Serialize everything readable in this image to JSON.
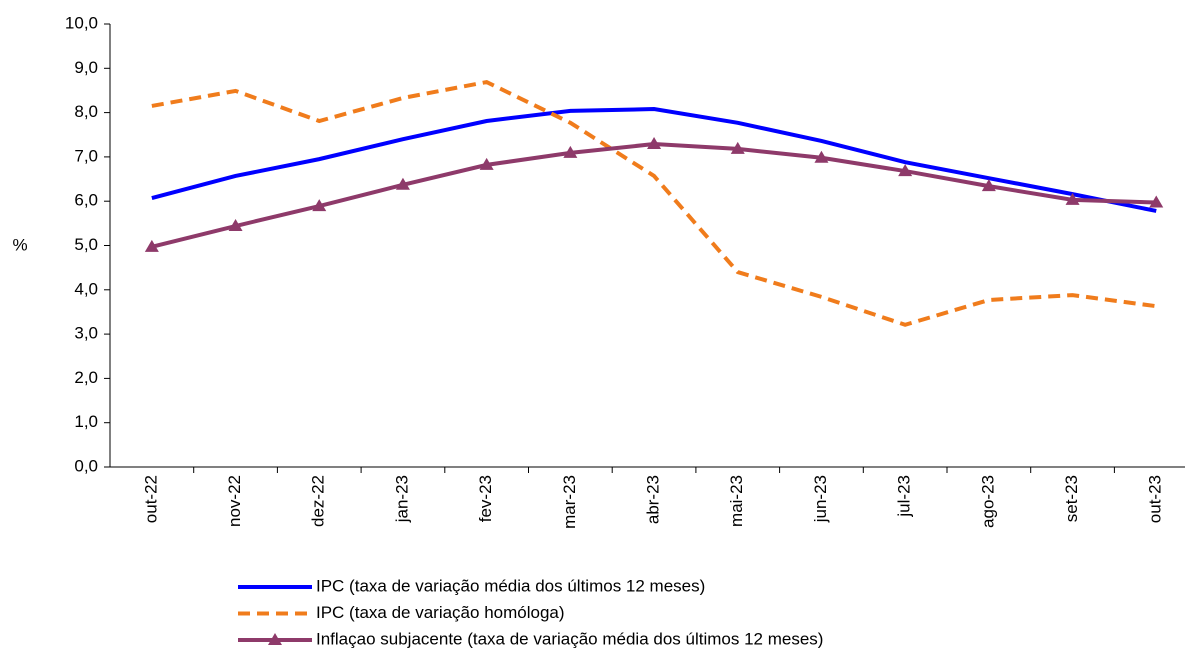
{
  "chart_data": {
    "type": "line",
    "y_label": "%",
    "categories": [
      "out-22",
      "nov-22",
      "dez-22",
      "jan-23",
      "fev-23",
      "mar-23",
      "abr-23",
      "mai-23",
      "jun-23",
      "jul-23",
      "ago-23",
      "set-23",
      "out-23"
    ],
    "series": [
      {
        "name": "IPC (taxa de variação média dos últimos 12 meses)",
        "color": "#0000ff",
        "dash": false,
        "marker": null,
        "values": [
          6.07,
          6.57,
          6.95,
          7.4,
          7.81,
          8.04,
          8.08,
          7.77,
          7.36,
          6.88,
          6.52,
          6.16,
          5.78
        ]
      },
      {
        "name": "IPC (taxa de variação homóloga)",
        "color": "#f07c1c",
        "dash": true,
        "marker": null,
        "values": [
          8.15,
          8.49,
          7.81,
          8.33,
          8.69,
          7.77,
          6.57,
          4.4,
          3.84,
          3.21,
          3.77,
          3.88,
          3.63
        ]
      },
      {
        "name": "Inflaçao subjacente (taxa de variação média dos últimos 12 meses)",
        "color": "#8e3a6a",
        "dash": false,
        "marker": "triangle",
        "values": [
          4.97,
          5.44,
          5.89,
          6.37,
          6.82,
          7.09,
          7.29,
          7.18,
          6.98,
          6.68,
          6.34,
          6.03,
          5.97
        ]
      }
    ],
    "ylim": [
      0,
      10
    ],
    "yticks": [
      {
        "value": 0,
        "label": "0,0"
      },
      {
        "value": 1,
        "label": "1,0"
      },
      {
        "value": 2,
        "label": "2,0"
      },
      {
        "value": 3,
        "label": "3,0"
      },
      {
        "value": 4,
        "label": "4,0"
      },
      {
        "value": 5,
        "label": "5,0"
      },
      {
        "value": 6,
        "label": "6,0"
      },
      {
        "value": 7,
        "label": "7,0"
      },
      {
        "value": 8,
        "label": "8,0"
      },
      {
        "value": 9,
        "label": "9,0"
      },
      {
        "value": 10,
        "label": "10,0"
      }
    ],
    "grid": false
  }
}
